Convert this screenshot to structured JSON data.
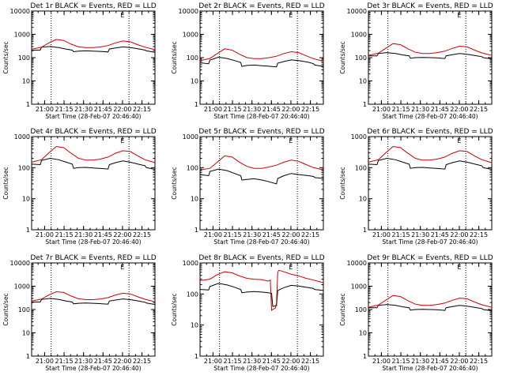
{
  "chart_data": [
    {
      "type": "line",
      "title": "Det 1r BLACK = Events, RED = LLD",
      "corner_mark": "E",
      "xlabel": "Start Time (28-Feb-07 20:46:40)",
      "ylabel": "Counts/sec",
      "yscale": "log",
      "ylim": [
        1,
        10000
      ],
      "yticks": [
        "1",
        "10",
        "100",
        "1000",
        "10000"
      ],
      "xlim": [
        0,
        100
      ],
      "xticks": [
        "21:00",
        "21:15",
        "21:30",
        "21:45",
        "22:00",
        "22:15"
      ],
      "vlines_at": [
        "21:05",
        "22:05"
      ],
      "series": [
        {
          "color": "#000000",
          "x": [
            0,
            7,
            8,
            15,
            22,
            28,
            33,
            34,
            38,
            44,
            50,
            55,
            62,
            63,
            68,
            74,
            80,
            88,
            92,
            93,
            100
          ],
          "y": [
            210,
            210,
            280,
            300,
            270,
            230,
            210,
            180,
            190,
            195,
            190,
            185,
            175,
            235,
            260,
            290,
            270,
            230,
            210,
            195,
            170
          ]
        },
        {
          "color": "#cc0000",
          "x": [
            0,
            8,
            14,
            20,
            26,
            32,
            38,
            44,
            50,
            56,
            62,
            68,
            74,
            80,
            86,
            92,
            100
          ],
          "y": [
            230,
            280,
            430,
            600,
            550,
            380,
            290,
            270,
            270,
            290,
            330,
            430,
            520,
            480,
            360,
            280,
            220
          ]
        }
      ]
    },
    {
      "type": "line",
      "title": "Det 2r BLACK = Events, RED = LLD",
      "corner_mark": "E",
      "xlabel": "Start Time (28-Feb-07 20:46:40)",
      "ylabel": "Counts/sec",
      "yscale": "log",
      "ylim": [
        1,
        10000
      ],
      "yticks": [
        "1",
        "10",
        "100",
        "1000",
        "10000"
      ],
      "xlim": [
        0,
        100
      ],
      "xticks": [
        "21:00",
        "21:15",
        "21:30",
        "21:45",
        "22:00",
        "22:15"
      ],
      "vlines_at": [
        "21:05",
        "22:05"
      ],
      "series": [
        {
          "color": "#000000",
          "x": [
            0,
            7,
            8,
            15,
            22,
            28,
            33,
            34,
            38,
            44,
            50,
            55,
            62,
            63,
            68,
            74,
            80,
            88,
            92,
            93,
            100
          ],
          "y": [
            60,
            55,
            78,
            105,
            92,
            75,
            62,
            42,
            46,
            48,
            45,
            43,
            40,
            58,
            68,
            80,
            75,
            63,
            55,
            48,
            42
          ]
        },
        {
          "color": "#cc0000",
          "x": [
            0,
            8,
            14,
            20,
            26,
            32,
            38,
            44,
            50,
            56,
            62,
            68,
            74,
            80,
            86,
            92,
            100
          ],
          "y": [
            75,
            92,
            150,
            240,
            210,
            140,
            100,
            90,
            90,
            100,
            115,
            150,
            180,
            165,
            120,
            90,
            70
          ]
        }
      ]
    },
    {
      "type": "line",
      "title": "Det 3r BLACK = Events, RED = LLD",
      "corner_mark": "E",
      "xlabel": "Start Time (28-Feb-07 20:46:40)",
      "ylabel": "Counts/sec",
      "yscale": "log",
      "ylim": [
        1,
        10000
      ],
      "yticks": [
        "1",
        "10",
        "100",
        "1000",
        "10000"
      ],
      "xlim": [
        0,
        100
      ],
      "xticks": [
        "21:00",
        "21:15",
        "21:30",
        "21:45",
        "22:00",
        "22:15"
      ],
      "vlines_at": [
        "21:05",
        "22:05"
      ],
      "series": [
        {
          "color": "#000000",
          "x": [
            0,
            7,
            8,
            15,
            22,
            28,
            33,
            34,
            38,
            44,
            50,
            55,
            62,
            63,
            68,
            74,
            80,
            88,
            92,
            93,
            100
          ],
          "y": [
            120,
            120,
            150,
            165,
            150,
            130,
            120,
            95,
            100,
            102,
            100,
            98,
            92,
            120,
            135,
            150,
            140,
            120,
            110,
            100,
            88
          ]
        },
        {
          "color": "#cc0000",
          "x": [
            0,
            8,
            14,
            20,
            26,
            32,
            38,
            44,
            50,
            56,
            62,
            68,
            74,
            80,
            86,
            92,
            100
          ],
          "y": [
            125,
            155,
            250,
            400,
            360,
            240,
            170,
            150,
            150,
            165,
            190,
            250,
            310,
            290,
            210,
            160,
            125
          ]
        }
      ]
    },
    {
      "type": "line",
      "title": "Det 4r BLACK = Events, RED = LLD",
      "corner_mark": "E",
      "xlabel": "Start Time (28-Feb-07 20:46:40)",
      "ylabel": "Counts/sec",
      "yscale": "log",
      "ylim": [
        1,
        1000
      ],
      "yticks": [
        "1",
        "10",
        "100",
        "1000"
      ],
      "xlim": [
        0,
        100
      ],
      "xticks": [
        "21:00",
        "21:15",
        "21:30",
        "21:45",
        "22:00",
        "22:15"
      ],
      "vlines_at": [
        "21:05",
        "22:05"
      ],
      "series": [
        {
          "color": "#000000",
          "x": [
            0,
            7,
            8,
            15,
            22,
            28,
            33,
            34,
            38,
            44,
            50,
            55,
            62,
            63,
            68,
            74,
            80,
            88,
            92,
            93,
            100
          ],
          "y": [
            130,
            125,
            170,
            200,
            180,
            150,
            130,
            95,
            100,
            102,
            98,
            95,
            90,
            125,
            145,
            165,
            150,
            125,
            115,
            100,
            88
          ]
        },
        {
          "color": "#cc0000",
          "x": [
            0,
            8,
            14,
            20,
            26,
            32,
            38,
            44,
            50,
            56,
            62,
            68,
            74,
            80,
            86,
            92,
            100
          ],
          "y": [
            150,
            180,
            300,
            480,
            440,
            290,
            200,
            175,
            175,
            190,
            220,
            290,
            350,
            330,
            240,
            180,
            145
          ]
        }
      ]
    },
    {
      "type": "line",
      "title": "Det 5r BLACK = Events, RED = LLD",
      "corner_mark": "E",
      "xlabel": "Start Time (28-Feb-07 20:46:40)",
      "ylabel": "Counts/sec",
      "yscale": "log",
      "ylim": [
        1,
        1000
      ],
      "yticks": [
        "1",
        "10",
        "100",
        "1000"
      ],
      "xlim": [
        0,
        100
      ],
      "xticks": [
        "21:00",
        "21:15",
        "21:30",
        "21:45",
        "22:00",
        "22:15"
      ],
      "vlines_at": [
        "21:05",
        "22:05"
      ],
      "series": [
        {
          "color": "#000000",
          "x": [
            0,
            7,
            8,
            15,
            22,
            28,
            33,
            34,
            38,
            44,
            50,
            55,
            62,
            63,
            68,
            74,
            80,
            88,
            92,
            93,
            100
          ],
          "y": [
            60,
            55,
            75,
            90,
            80,
            65,
            55,
            40,
            42,
            44,
            40,
            36,
            30,
            45,
            55,
            65,
            60,
            55,
            52,
            48,
            45
          ]
        },
        {
          "color": "#cc0000",
          "x": [
            0,
            8,
            14,
            20,
            26,
            32,
            38,
            44,
            50,
            56,
            62,
            68,
            74,
            80,
            86,
            92,
            100
          ],
          "y": [
            85,
            95,
            150,
            240,
            220,
            150,
            110,
            95,
            95,
            105,
            120,
            150,
            175,
            160,
            125,
            100,
            85
          ]
        }
      ]
    },
    {
      "type": "line",
      "title": "Det 6r BLACK = Events, RED = LLD",
      "corner_mark": "E",
      "xlabel": "Start Time (28-Feb-07 20:46:40)",
      "ylabel": "Counts/sec",
      "yscale": "log",
      "ylim": [
        1,
        1000
      ],
      "yticks": [
        "1",
        "10",
        "100",
        "1000"
      ],
      "xlim": [
        0,
        100
      ],
      "xticks": [
        "21:00",
        "21:15",
        "21:30",
        "21:45",
        "22:00",
        "22:15"
      ],
      "vlines_at": [
        "21:05",
        "22:05"
      ],
      "series": [
        {
          "color": "#000000",
          "x": [
            0,
            7,
            8,
            15,
            22,
            28,
            33,
            34,
            38,
            44,
            50,
            55,
            62,
            63,
            68,
            74,
            80,
            88,
            92,
            93,
            100
          ],
          "y": [
            130,
            125,
            170,
            200,
            180,
            150,
            130,
            95,
            100,
            102,
            98,
            95,
            90,
            125,
            145,
            165,
            150,
            125,
            115,
            100,
            88
          ]
        },
        {
          "color": "#cc0000",
          "x": [
            0,
            8,
            14,
            20,
            26,
            32,
            38,
            44,
            50,
            56,
            62,
            68,
            74,
            80,
            86,
            92,
            100
          ],
          "y": [
            150,
            180,
            300,
            480,
            440,
            290,
            200,
            175,
            175,
            190,
            220,
            290,
            350,
            330,
            240,
            180,
            145
          ]
        }
      ]
    },
    {
      "type": "line",
      "title": "Det 7r BLACK = Events, RED = LLD",
      "corner_mark": "E",
      "xlabel": "Start Time (28-Feb-07 20:46:40)",
      "ylabel": "Counts/sec",
      "yscale": "log",
      "ylim": [
        1,
        10000
      ],
      "yticks": [
        "1",
        "10",
        "100",
        "1000",
        "10000"
      ],
      "xlim": [
        0,
        100
      ],
      "xticks": [
        "21:00",
        "21:15",
        "21:30",
        "21:45",
        "22:00",
        "22:15"
      ],
      "vlines_at": [
        "21:05",
        "22:05"
      ],
      "series": [
        {
          "color": "#000000",
          "x": [
            0,
            7,
            8,
            15,
            22,
            28,
            33,
            34,
            38,
            44,
            50,
            55,
            62,
            63,
            68,
            74,
            80,
            88,
            92,
            93,
            100
          ],
          "y": [
            210,
            210,
            270,
            300,
            270,
            230,
            210,
            175,
            185,
            190,
            185,
            180,
            170,
            230,
            255,
            285,
            265,
            225,
            205,
            190,
            165
          ]
        },
        {
          "color": "#cc0000",
          "x": [
            0,
            8,
            14,
            20,
            26,
            32,
            38,
            44,
            50,
            56,
            62,
            68,
            74,
            80,
            86,
            92,
            100
          ],
          "y": [
            230,
            280,
            420,
            580,
            540,
            380,
            290,
            265,
            265,
            285,
            325,
            420,
            500,
            470,
            350,
            275,
            215
          ]
        }
      ]
    },
    {
      "type": "line",
      "title": "Det 8r BLACK = Events, RED = LLD",
      "corner_mark": "E",
      "xlabel": "Start Time (28-Feb-07 20:46:40)",
      "ylabel": "Counts/sec",
      "yscale": "log",
      "ylim": [
        1,
        1000
      ],
      "yticks": [
        "1",
        "10",
        "100",
        "1000"
      ],
      "xlim": [
        0,
        100
      ],
      "xticks": [
        "21:00",
        "21:15",
        "21:30",
        "21:45",
        "22:00",
        "22:15"
      ],
      "vlines_at": [
        "21:05",
        "22:05"
      ],
      "series": [
        {
          "color": "#000000",
          "x": [
            0,
            7,
            8,
            15,
            22,
            28,
            33,
            34,
            38,
            44,
            50,
            55,
            58,
            59,
            62,
            63,
            68,
            74,
            80,
            88,
            92,
            93,
            100
          ],
          "y": [
            140,
            135,
            175,
            220,
            195,
            165,
            140,
            110,
            115,
            120,
            115,
            110,
            105,
            40,
            42,
            130,
            160,
            190,
            180,
            160,
            150,
            140,
            130
          ]
        },
        {
          "color": "#cc0000",
          "x": [
            0,
            8,
            14,
            20,
            26,
            32,
            38,
            44,
            50,
            55,
            57,
            58,
            59,
            61,
            62,
            63,
            64,
            68,
            74,
            80,
            86,
            92,
            100
          ],
          "y": [
            270,
            300,
            420,
            520,
            480,
            380,
            320,
            300,
            290,
            260,
            280,
            30,
            32,
            35,
            50,
            500,
            580,
            520,
            430,
            380,
            320,
            280,
            230
          ]
        }
      ]
    },
    {
      "type": "line",
      "title": "Det 9r BLACK = Events, RED = LLD",
      "corner_mark": "E",
      "xlabel": "Start Time (28-Feb-07 20:46:40)",
      "ylabel": "Counts/sec",
      "yscale": "log",
      "ylim": [
        1,
        10000
      ],
      "yticks": [
        "1",
        "10",
        "100",
        "1000",
        "10000"
      ],
      "xlim": [
        0,
        100
      ],
      "xticks": [
        "21:00",
        "21:15",
        "21:30",
        "21:45",
        "22:00",
        "22:15"
      ],
      "vlines_at": [
        "21:05",
        "22:05"
      ],
      "series": [
        {
          "color": "#000000",
          "x": [
            0,
            7,
            8,
            15,
            22,
            28,
            33,
            34,
            38,
            44,
            50,
            55,
            62,
            63,
            68,
            74,
            80,
            88,
            92,
            93,
            100
          ],
          "y": [
            120,
            120,
            150,
            165,
            150,
            130,
            120,
            95,
            100,
            102,
            100,
            98,
            92,
            120,
            135,
            150,
            140,
            120,
            110,
            100,
            88
          ]
        },
        {
          "color": "#cc0000",
          "x": [
            0,
            8,
            14,
            20,
            26,
            32,
            38,
            44,
            50,
            56,
            62,
            68,
            74,
            80,
            86,
            92,
            100
          ],
          "y": [
            125,
            155,
            250,
            400,
            360,
            240,
            170,
            150,
            150,
            165,
            190,
            250,
            310,
            290,
            210,
            160,
            125
          ]
        }
      ]
    }
  ]
}
